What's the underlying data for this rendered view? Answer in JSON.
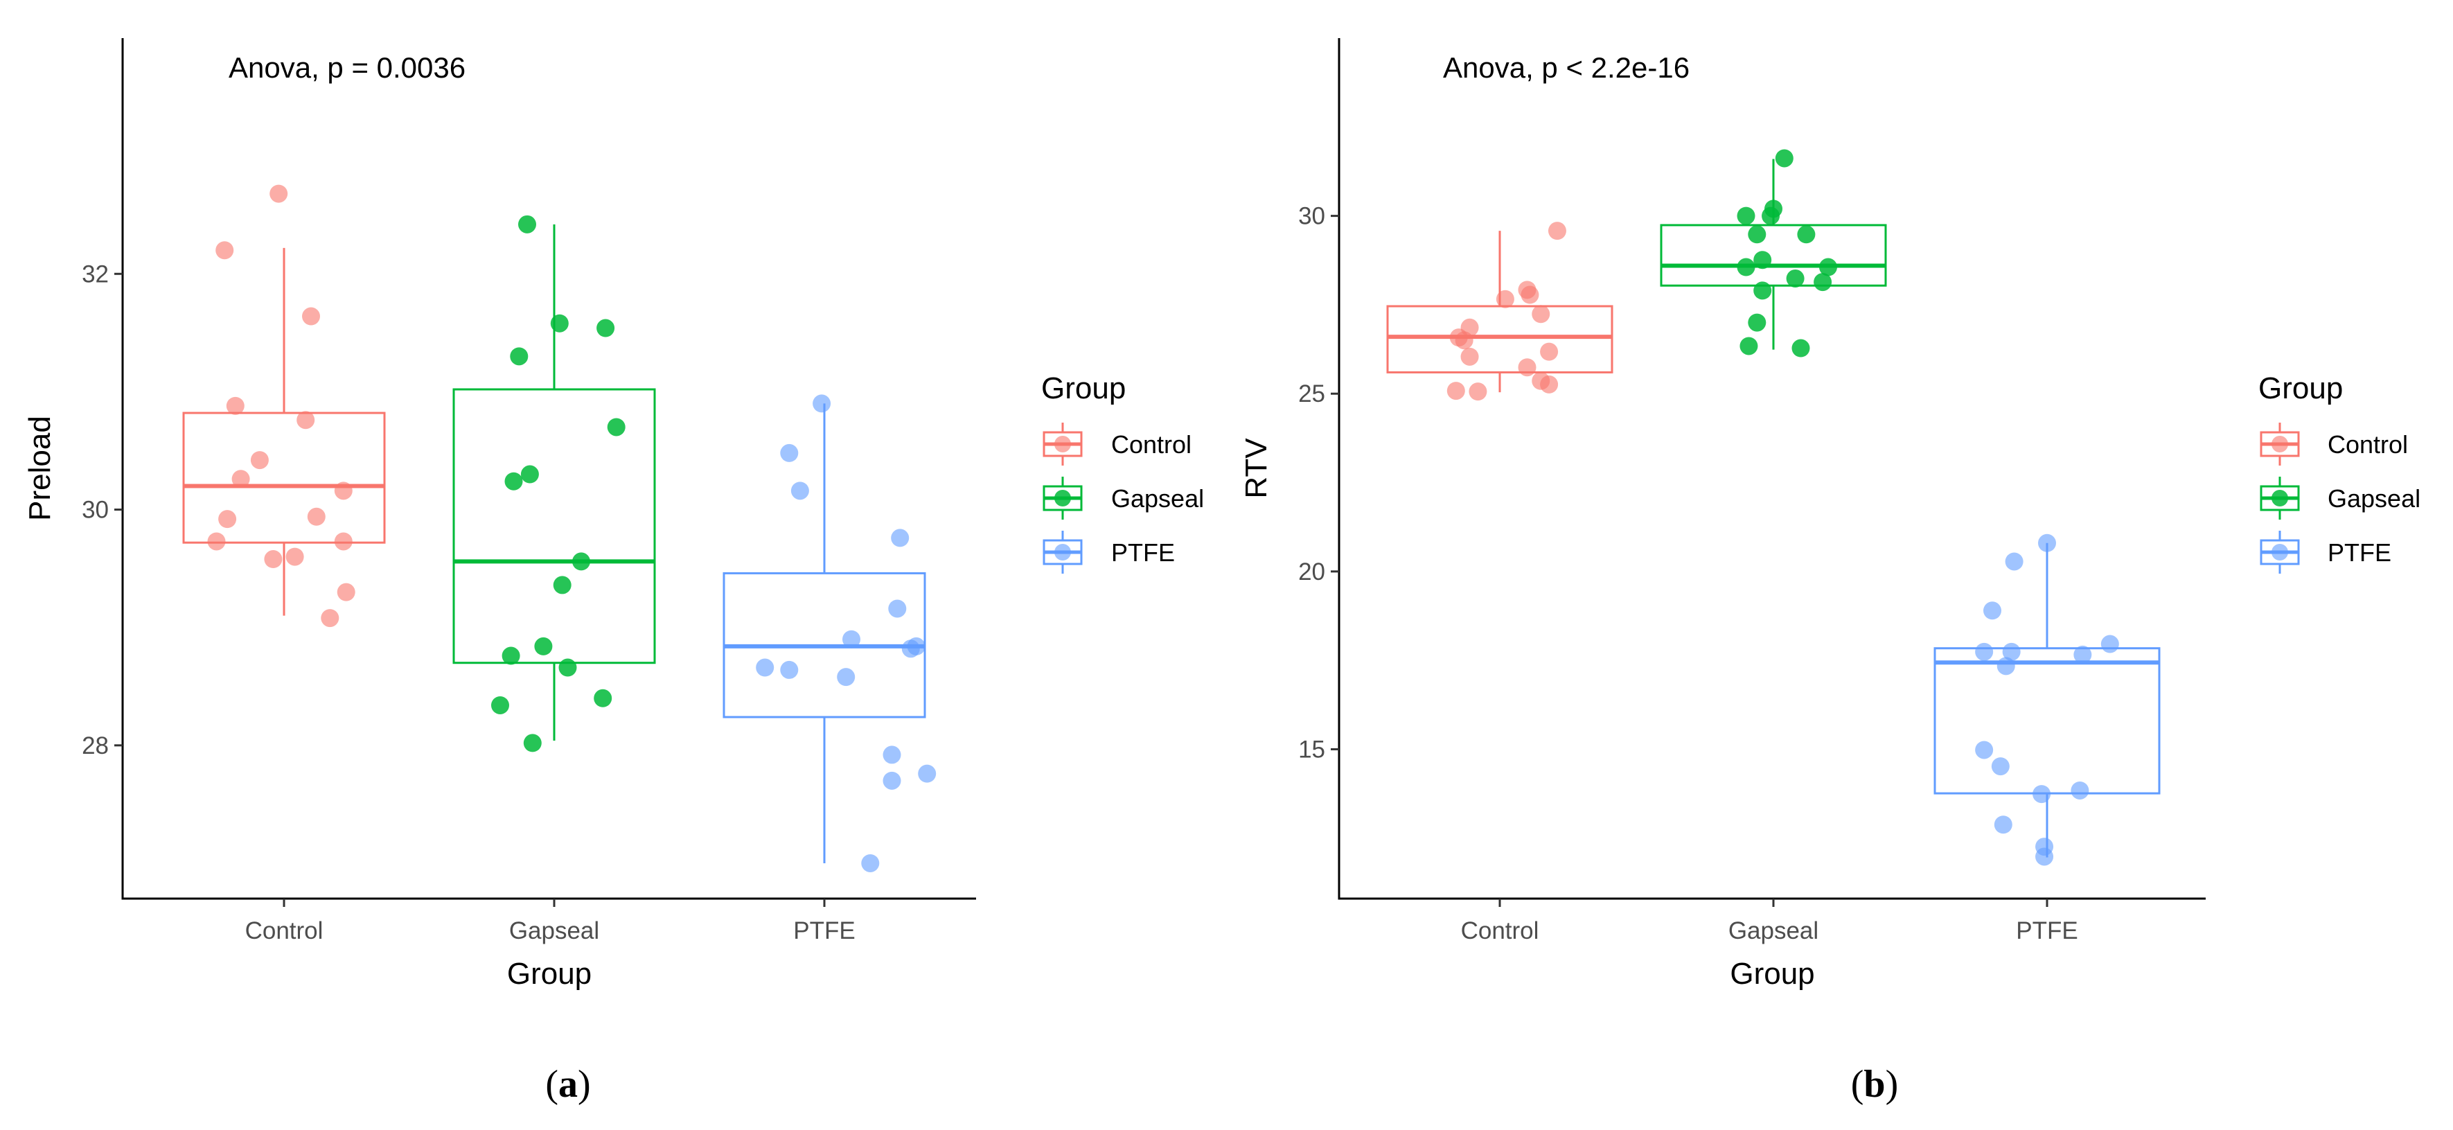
{
  "figure": {
    "panel_labels": [
      {
        "open": "(",
        "letter": "a",
        "close": ")"
      },
      {
        "open": "(",
        "letter": "b",
        "close": ")"
      }
    ]
  },
  "colors": {
    "Control": "#F8766D",
    "Gapseal": "#00BA38",
    "PTFE": "#619CFF"
  },
  "chart_data": [
    {
      "type": "box",
      "annotation": "Anova, p = 0.0036",
      "xlabel": "Group",
      "ylabel": "Preload",
      "categories": [
        "Control",
        "Gapseal",
        "PTFE"
      ],
      "ylim": [
        26.7,
        34.0
      ],
      "yticks": [
        28,
        30,
        32
      ],
      "ytick_labels": [
        "28",
        "30",
        "32"
      ],
      "legend": {
        "title": "Group",
        "entries": [
          "Control",
          "Gapseal",
          "PTFE"
        ]
      },
      "boxes": [
        {
          "group": "Control",
          "q1": 29.72,
          "median": 30.2,
          "q3": 30.82,
          "whisker_low": 29.1,
          "whisker_high": 32.22
        },
        {
          "group": "Gapseal",
          "q1": 28.7,
          "median": 29.56,
          "q3": 31.02,
          "whisker_low": 28.04,
          "whisker_high": 32.42
        },
        {
          "group": "PTFE",
          "q1": 28.24,
          "median": 28.84,
          "q3": 29.46,
          "whisker_low": 27.0,
          "whisker_high": 30.9
        }
      ],
      "points": [
        {
          "group": "Control",
          "jitter": -0.02,
          "y": 32.68
        },
        {
          "group": "Control",
          "jitter": -0.22,
          "y": 32.2
        },
        {
          "group": "Control",
          "jitter": 0.1,
          "y": 31.64
        },
        {
          "group": "Control",
          "jitter": -0.18,
          "y": 30.88
        },
        {
          "group": "Control",
          "jitter": 0.08,
          "y": 30.76
        },
        {
          "group": "Control",
          "jitter": -0.09,
          "y": 30.42
        },
        {
          "group": "Control",
          "jitter": -0.16,
          "y": 30.26
        },
        {
          "group": "Control",
          "jitter": 0.22,
          "y": 30.16
        },
        {
          "group": "Control",
          "jitter": -0.21,
          "y": 29.92
        },
        {
          "group": "Control",
          "jitter": 0.12,
          "y": 29.94
        },
        {
          "group": "Control",
          "jitter": -0.25,
          "y": 29.73
        },
        {
          "group": "Control",
          "jitter": 0.22,
          "y": 29.73
        },
        {
          "group": "Control",
          "jitter": 0.04,
          "y": 29.6
        },
        {
          "group": "Control",
          "jitter": -0.04,
          "y": 29.58
        },
        {
          "group": "Control",
          "jitter": 0.23,
          "y": 29.3
        },
        {
          "group": "Control",
          "jitter": 0.17,
          "y": 29.08
        },
        {
          "group": "Gapseal",
          "jitter": -0.1,
          "y": 32.42
        },
        {
          "group": "Gapseal",
          "jitter": 0.02,
          "y": 31.58
        },
        {
          "group": "Gapseal",
          "jitter": 0.19,
          "y": 31.54
        },
        {
          "group": "Gapseal",
          "jitter": -0.13,
          "y": 31.3
        },
        {
          "group": "Gapseal",
          "jitter": 0.23,
          "y": 30.7
        },
        {
          "group": "Gapseal",
          "jitter": -0.09,
          "y": 30.3
        },
        {
          "group": "Gapseal",
          "jitter": -0.15,
          "y": 30.24
        },
        {
          "group": "Gapseal",
          "jitter": 0.1,
          "y": 29.56
        },
        {
          "group": "Gapseal",
          "jitter": 0.03,
          "y": 29.36
        },
        {
          "group": "Gapseal",
          "jitter": -0.04,
          "y": 28.84
        },
        {
          "group": "Gapseal",
          "jitter": -0.16,
          "y": 28.76
        },
        {
          "group": "Gapseal",
          "jitter": 0.05,
          "y": 28.66
        },
        {
          "group": "Gapseal",
          "jitter": 0.18,
          "y": 28.4
        },
        {
          "group": "Gapseal",
          "jitter": -0.2,
          "y": 28.34
        },
        {
          "group": "Gapseal",
          "jitter": -0.08,
          "y": 28.02
        },
        {
          "group": "PTFE",
          "jitter": -0.01,
          "y": 30.9
        },
        {
          "group": "PTFE",
          "jitter": -0.13,
          "y": 30.48
        },
        {
          "group": "PTFE",
          "jitter": -0.09,
          "y": 30.16
        },
        {
          "group": "PTFE",
          "jitter": 0.28,
          "y": 29.76
        },
        {
          "group": "PTFE",
          "jitter": 0.27,
          "y": 29.16
        },
        {
          "group": "PTFE",
          "jitter": 0.1,
          "y": 28.9
        },
        {
          "group": "PTFE",
          "jitter": 0.34,
          "y": 28.84
        },
        {
          "group": "PTFE",
          "jitter": 0.32,
          "y": 28.82
        },
        {
          "group": "PTFE",
          "jitter": -0.22,
          "y": 28.66
        },
        {
          "group": "PTFE",
          "jitter": -0.13,
          "y": 28.64
        },
        {
          "group": "PTFE",
          "jitter": 0.08,
          "y": 28.58
        },
        {
          "group": "PTFE",
          "jitter": 0.25,
          "y": 27.92
        },
        {
          "group": "PTFE",
          "jitter": 0.38,
          "y": 27.76
        },
        {
          "group": "PTFE",
          "jitter": 0.25,
          "y": 27.7
        },
        {
          "group": "PTFE",
          "jitter": 0.17,
          "y": 27.0
        }
      ]
    },
    {
      "type": "box",
      "annotation": "Anova, p < 2.2e-16",
      "xlabel": "Group",
      "ylabel": "RTV",
      "categories": [
        "Control",
        "Gapseal",
        "PTFE"
      ],
      "ylim": [
        10.8,
        35.0
      ],
      "yticks": [
        15,
        20,
        25,
        30
      ],
      "ytick_labels": [
        "15",
        "20",
        "25",
        "30"
      ],
      "legend": {
        "title": "Group",
        "entries": [
          "Control",
          "Gapseal",
          "PTFE"
        ]
      },
      "boxes": [
        {
          "group": "Control",
          "q1": 25.6,
          "median": 26.6,
          "q3": 27.46,
          "whisker_low": 25.04,
          "whisker_high": 29.58
        },
        {
          "group": "Gapseal",
          "q1": 28.04,
          "median": 28.6,
          "q3": 29.74,
          "whisker_low": 26.24,
          "whisker_high": 31.6
        },
        {
          "group": "PTFE",
          "q1": 13.76,
          "median": 17.44,
          "q3": 17.84,
          "whisker_low": 11.96,
          "whisker_high": 20.8
        }
      ],
      "points": [
        {
          "group": "Control",
          "jitter": 0.21,
          "y": 29.58
        },
        {
          "group": "Control",
          "jitter": 0.1,
          "y": 27.92
        },
        {
          "group": "Control",
          "jitter": 0.11,
          "y": 27.78
        },
        {
          "group": "Control",
          "jitter": 0.02,
          "y": 27.66
        },
        {
          "group": "Control",
          "jitter": 0.15,
          "y": 27.24
        },
        {
          "group": "Control",
          "jitter": -0.11,
          "y": 26.86
        },
        {
          "group": "Control",
          "jitter": -0.15,
          "y": 26.58
        },
        {
          "group": "Control",
          "jitter": -0.13,
          "y": 26.5
        },
        {
          "group": "Control",
          "jitter": 0.18,
          "y": 26.18
        },
        {
          "group": "Control",
          "jitter": -0.11,
          "y": 26.04
        },
        {
          "group": "Control",
          "jitter": 0.1,
          "y": 25.74
        },
        {
          "group": "Control",
          "jitter": 0.15,
          "y": 25.36
        },
        {
          "group": "Control",
          "jitter": 0.18,
          "y": 25.26
        },
        {
          "group": "Control",
          "jitter": -0.16,
          "y": 25.08
        },
        {
          "group": "Control",
          "jitter": -0.08,
          "y": 25.06
        },
        {
          "group": "Gapseal",
          "jitter": 0.04,
          "y": 31.62
        },
        {
          "group": "Gapseal",
          "jitter": 0.0,
          "y": 30.2
        },
        {
          "group": "Gapseal",
          "jitter": -0.1,
          "y": 30.0
        },
        {
          "group": "Gapseal",
          "jitter": -0.01,
          "y": 30.0
        },
        {
          "group": "Gapseal",
          "jitter": -0.06,
          "y": 29.48
        },
        {
          "group": "Gapseal",
          "jitter": 0.12,
          "y": 29.48
        },
        {
          "group": "Gapseal",
          "jitter": -0.04,
          "y": 28.76
        },
        {
          "group": "Gapseal",
          "jitter": -0.1,
          "y": 28.56
        },
        {
          "group": "Gapseal",
          "jitter": 0.2,
          "y": 28.56
        },
        {
          "group": "Gapseal",
          "jitter": 0.08,
          "y": 28.24
        },
        {
          "group": "Gapseal",
          "jitter": 0.18,
          "y": 28.14
        },
        {
          "group": "Gapseal",
          "jitter": -0.04,
          "y": 27.9
        },
        {
          "group": "Gapseal",
          "jitter": -0.06,
          "y": 27.0
        },
        {
          "group": "Gapseal",
          "jitter": -0.09,
          "y": 26.34
        },
        {
          "group": "Gapseal",
          "jitter": 0.1,
          "y": 26.28
        },
        {
          "group": "PTFE",
          "jitter": 0.0,
          "y": 20.8
        },
        {
          "group": "PTFE",
          "jitter": -0.12,
          "y": 20.28
        },
        {
          "group": "PTFE",
          "jitter": -0.2,
          "y": 18.9
        },
        {
          "group": "PTFE",
          "jitter": 0.23,
          "y": 17.96
        },
        {
          "group": "PTFE",
          "jitter": -0.23,
          "y": 17.74
        },
        {
          "group": "PTFE",
          "jitter": -0.13,
          "y": 17.74
        },
        {
          "group": "PTFE",
          "jitter": 0.13,
          "y": 17.66
        },
        {
          "group": "PTFE",
          "jitter": -0.15,
          "y": 17.34
        },
        {
          "group": "PTFE",
          "jitter": -0.23,
          "y": 14.98
        },
        {
          "group": "PTFE",
          "jitter": -0.17,
          "y": 14.52
        },
        {
          "group": "PTFE",
          "jitter": 0.12,
          "y": 13.84
        },
        {
          "group": "PTFE",
          "jitter": -0.02,
          "y": 13.74
        },
        {
          "group": "PTFE",
          "jitter": -0.16,
          "y": 12.88
        },
        {
          "group": "PTFE",
          "jitter": -0.01,
          "y": 12.26
        },
        {
          "group": "PTFE",
          "jitter": -0.01,
          "y": 11.98
        }
      ]
    }
  ]
}
